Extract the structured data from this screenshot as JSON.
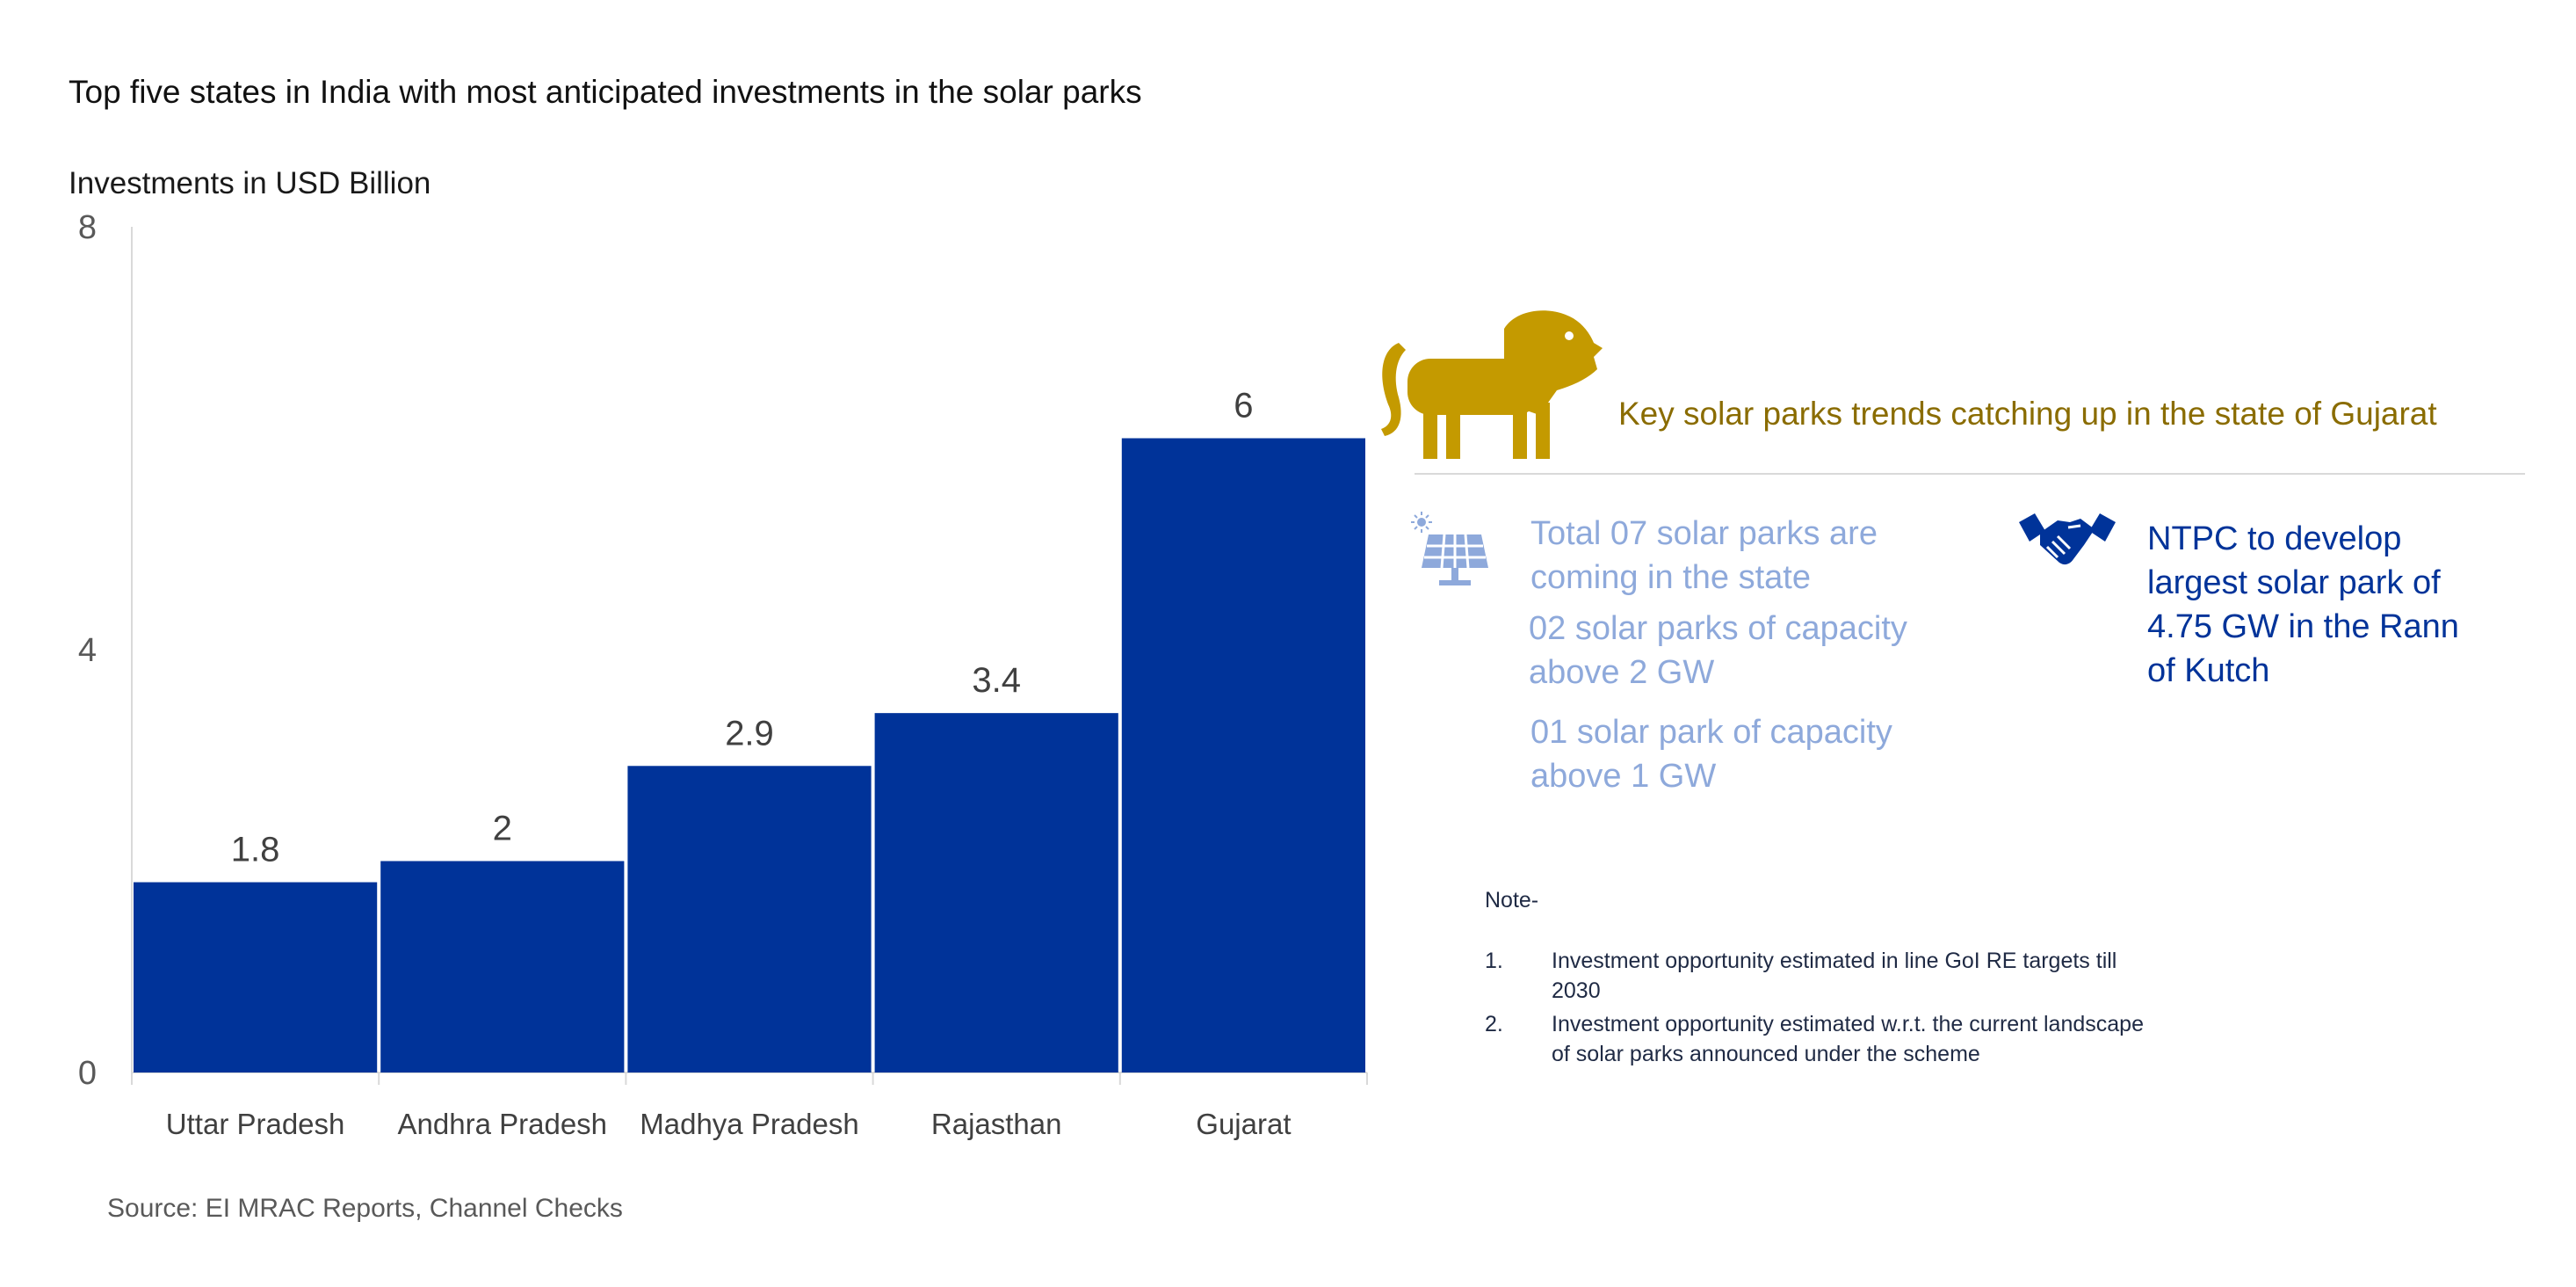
{
  "title": "Top five states in India with most anticipated investments in the solar parks",
  "source": "Source: EI MRAC Reports, Channel Checks",
  "colors": {
    "bar": "#003399",
    "axis": "#d9d9d9",
    "gold": "#c49a00",
    "callout_title": "#8a6c00",
    "light_blue": "#8ea9db",
    "dark_blue": "#003399"
  },
  "chart_data": {
    "type": "bar",
    "title": "Top five states in India with most anticipated investments in the solar parks",
    "ylabel": "Investments in USD Billion",
    "xlabel": "",
    "categories": [
      "Uttar Pradesh",
      "Andhra Pradesh",
      "Madhya Pradesh",
      "Rajasthan",
      "Gujarat"
    ],
    "values": [
      1.8,
      2,
      2.9,
      3.4,
      6
    ],
    "data_labels": [
      "1.8",
      "2",
      "2.9",
      "3.4",
      "6"
    ],
    "ylim": [
      0,
      8
    ],
    "yticks": [
      0,
      4,
      8
    ],
    "grid": false,
    "legend": "none"
  },
  "callout": {
    "icon": "lion-icon",
    "title": "Key solar parks trends catching up in the state of Gujarat",
    "solar_icon": "solar-panel-icon",
    "points": [
      "Total 07 solar parks are coming in the state",
      "02 solar parks of capacity above 2 GW",
      "01 solar park of capacity above 1 GW"
    ],
    "handshake_icon": "handshake-icon",
    "ntpc_text": "NTPC to develop largest solar park of 4.75 GW in the Rann of Kutch"
  },
  "notes": {
    "heading": "Note-",
    "items": [
      {
        "num": "1.",
        "text": "Investment opportunity estimated in line GoI RE targets till 2030"
      },
      {
        "num": "2.",
        "text": "Investment opportunity estimated w.r.t. the current landscape of solar parks announced under the scheme"
      }
    ]
  }
}
